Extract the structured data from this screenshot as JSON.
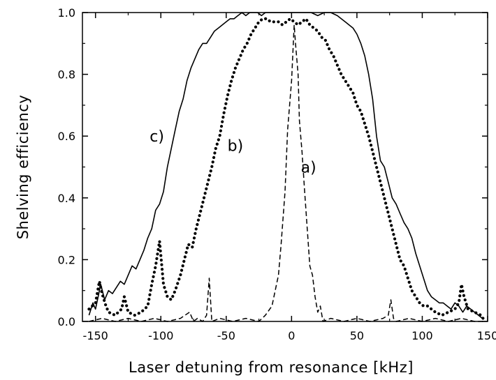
{
  "chart_data": {
    "type": "line",
    "title": "",
    "xlabel": "Laser detuning from resonance [kHz]",
    "ylabel": "Shelving efficiency",
    "xlim": [
      -160,
      150
    ],
    "ylim": [
      0,
      1.0
    ],
    "x_ticks": [
      -150,
      -100,
      -50,
      0,
      50,
      100,
      150
    ],
    "x_tick_labels": [
      "-150",
      "-100",
      "-50",
      "0",
      "50",
      "100",
      "150"
    ],
    "y_ticks": [
      0,
      0.2,
      0.4,
      0.6,
      0.8,
      1.0
    ],
    "y_tick_labels": [
      "0.0",
      "0.2",
      "0.4",
      "0.6",
      "0.8",
      "1.0"
    ],
    "grid": false,
    "legend": "none",
    "annotations": [
      {
        "text": "a)",
        "x": 13,
        "y": 0.5,
        "series": "a"
      },
      {
        "text": "b)",
        "x": -43,
        "y": 0.57,
        "series": "b"
      },
      {
        "text": "c)",
        "x": -103,
        "y": 0.6,
        "series": "c"
      }
    ],
    "series": [
      {
        "id": "a",
        "style": "dashed",
        "x": [
          -155,
          -145,
          -135,
          -125,
          -115,
          -105,
          -95,
          -85,
          -78,
          -75,
          -72,
          -68,
          -65,
          -63,
          -61,
          -55,
          -45,
          -35,
          -25,
          -20,
          -15,
          -10,
          -8,
          -5,
          -3,
          0,
          2,
          3,
          5,
          6,
          8,
          10,
          12,
          14,
          16,
          18,
          20,
          22,
          24,
          30,
          40,
          50,
          60,
          70,
          74,
          76,
          78,
          80,
          90,
          100,
          110,
          120,
          130,
          140,
          148
        ],
        "y": [
          0.0,
          0.01,
          0.0,
          0.01,
          0.0,
          0.01,
          0.0,
          0.01,
          0.03,
          0.0,
          0.01,
          0.0,
          0.02,
          0.14,
          0.0,
          0.01,
          0.0,
          0.01,
          0.0,
          0.02,
          0.05,
          0.15,
          0.25,
          0.42,
          0.62,
          0.78,
          0.96,
          0.9,
          0.8,
          0.65,
          0.55,
          0.42,
          0.3,
          0.18,
          0.15,
          0.08,
          0.03,
          0.05,
          0.0,
          0.01,
          0.0,
          0.01,
          0.0,
          0.01,
          0.02,
          0.07,
          0.01,
          0.0,
          0.01,
          0.0,
          0.01,
          0.0,
          0.01,
          0.0,
          0.0
        ]
      },
      {
        "id": "b",
        "style": "dotted",
        "x": [
          -155,
          -150,
          -147,
          -145,
          -142,
          -140,
          -135,
          -130,
          -128,
          -125,
          -120,
          -115,
          -110,
          -107,
          -104,
          -101,
          -98,
          -95,
          -92,
          -89,
          -85,
          -82,
          -79,
          -76,
          -73,
          -70,
          -67,
          -64,
          -61,
          -58,
          -55,
          -52,
          -49,
          -46,
          -43,
          -40,
          -37,
          -34,
          -31,
          -28,
          -25,
          -22,
          -19,
          -16,
          -13,
          -10,
          -7,
          -4,
          -1,
          2,
          5,
          8,
          11,
          14,
          17,
          20,
          23,
          26,
          29,
          32,
          35,
          38,
          41,
          44,
          47,
          50,
          53,
          56,
          59,
          62,
          65,
          68,
          71,
          74,
          77,
          80,
          83,
          86,
          89,
          92,
          95,
          98,
          101,
          104,
          107,
          110,
          115,
          120,
          125,
          128,
          130,
          132,
          135,
          140,
          145,
          148
        ],
        "y": [
          0.04,
          0.06,
          0.13,
          0.09,
          0.05,
          0.03,
          0.02,
          0.04,
          0.08,
          0.03,
          0.02,
          0.03,
          0.05,
          0.12,
          0.18,
          0.26,
          0.12,
          0.08,
          0.07,
          0.1,
          0.15,
          0.2,
          0.25,
          0.24,
          0.3,
          0.35,
          0.4,
          0.45,
          0.5,
          0.56,
          0.6,
          0.67,
          0.73,
          0.78,
          0.82,
          0.85,
          0.88,
          0.9,
          0.93,
          0.95,
          0.97,
          0.98,
          0.98,
          0.97,
          0.97,
          0.97,
          0.96,
          0.97,
          0.98,
          0.97,
          0.96,
          0.97,
          0.98,
          0.96,
          0.95,
          0.94,
          0.92,
          0.91,
          0.88,
          0.86,
          0.83,
          0.8,
          0.78,
          0.76,
          0.74,
          0.7,
          0.68,
          0.64,
          0.6,
          0.55,
          0.5,
          0.45,
          0.4,
          0.35,
          0.3,
          0.25,
          0.2,
          0.18,
          0.14,
          0.1,
          0.08,
          0.06,
          0.05,
          0.05,
          0.04,
          0.03,
          0.02,
          0.03,
          0.04,
          0.06,
          0.12,
          0.08,
          0.04,
          0.03,
          0.02,
          0.0
        ]
      },
      {
        "id": "c",
        "style": "solid",
        "x": [
          -155,
          -152,
          -150,
          -148,
          -146,
          -143,
          -140,
          -137,
          -134,
          -131,
          -128,
          -125,
          -122,
          -119,
          -116,
          -113,
          -110,
          -107,
          -104,
          -101,
          -98,
          -95,
          -92,
          -89,
          -86,
          -83,
          -80,
          -77,
          -74,
          -71,
          -68,
          -65,
          -62,
          -59,
          -56,
          -53,
          -50,
          -47,
          -44,
          -41,
          -38,
          -35,
          -32,
          -29,
          -26,
          -23,
          -20,
          -15,
          -10,
          -5,
          0,
          5,
          10,
          15,
          20,
          25,
          30,
          35,
          38,
          41,
          44,
          47,
          50,
          53,
          56,
          59,
          62,
          65,
          68,
          71,
          74,
          77,
          80,
          83,
          86,
          89,
          92,
          95,
          98,
          101,
          104,
          107,
          110,
          113,
          116,
          119,
          122,
          125,
          128,
          131,
          134,
          137,
          140,
          143,
          146
        ],
        "y": [
          0.02,
          0.06,
          0.04,
          0.08,
          0.12,
          0.07,
          0.1,
          0.09,
          0.11,
          0.13,
          0.12,
          0.15,
          0.18,
          0.17,
          0.2,
          0.23,
          0.27,
          0.3,
          0.36,
          0.38,
          0.42,
          0.5,
          0.56,
          0.62,
          0.68,
          0.72,
          0.78,
          0.82,
          0.85,
          0.88,
          0.9,
          0.9,
          0.92,
          0.94,
          0.95,
          0.96,
          0.97,
          0.98,
          0.98,
          0.99,
          1.0,
          0.99,
          1.0,
          1.0,
          1.0,
          0.99,
          1.0,
          1.0,
          1.0,
          1.0,
          1.0,
          1.0,
          1.0,
          1.0,
          0.99,
          1.0,
          1.0,
          0.99,
          0.98,
          0.97,
          0.96,
          0.95,
          0.93,
          0.9,
          0.86,
          0.8,
          0.72,
          0.6,
          0.52,
          0.5,
          0.45,
          0.4,
          0.38,
          0.35,
          0.32,
          0.3,
          0.27,
          0.22,
          0.18,
          0.14,
          0.1,
          0.08,
          0.07,
          0.06,
          0.06,
          0.05,
          0.04,
          0.06,
          0.05,
          0.03,
          0.05,
          0.04,
          0.03,
          0.02,
          0.01
        ]
      }
    ]
  }
}
